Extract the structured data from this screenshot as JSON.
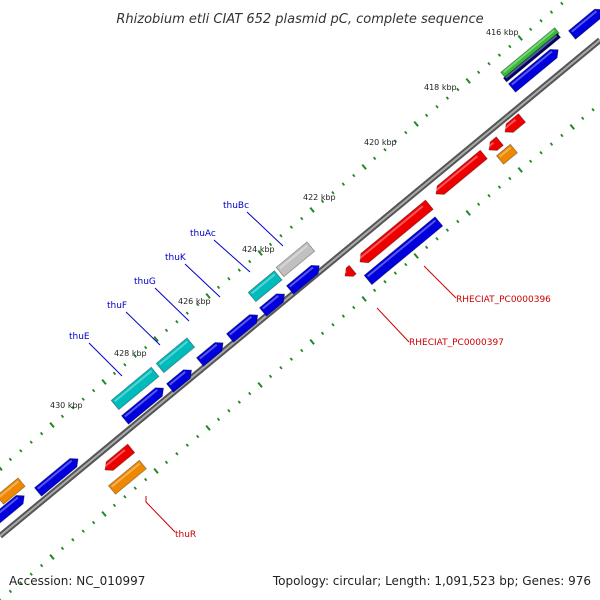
{
  "title": "Rhizobium etli CIAT 652 plasmid pC, complete sequence",
  "footer": {
    "accession": "Accession: NC_010997",
    "summary": "Topology: circular; Length: 1,091,523 bp; Genes: 976"
  },
  "ticks": [
    {
      "label": "416 kbp"
    },
    {
      "label": "418 kbp"
    },
    {
      "label": "420 kbp"
    },
    {
      "label": "422 kbp"
    },
    {
      "label": "424 kbp"
    },
    {
      "label": "426 kbp"
    },
    {
      "label": "428 kbp"
    },
    {
      "label": "430 kbp"
    }
  ],
  "gene_labels": [
    {
      "name": "thuBc",
      "color": "#0000cc"
    },
    {
      "name": "thuAc",
      "color": "#0000cc"
    },
    {
      "name": "thuK",
      "color": "#0000cc"
    },
    {
      "name": "thuG",
      "color": "#0000cc"
    },
    {
      "name": "thuF",
      "color": "#0000cc"
    },
    {
      "name": "thuE",
      "color": "#0000cc"
    },
    {
      "name": "RHECIAT_PC0000396",
      "color": "#cc0000"
    },
    {
      "name": "RHECIAT_PC0000397",
      "color": "#cc0000"
    },
    {
      "name": "thuR",
      "color": "#cc0000"
    }
  ],
  "colors": {
    "backbone": "#808080",
    "blue_cds": "#0000dd",
    "red_cds": "#ee0000",
    "cyan_cds": "#00bbbb",
    "grey_cds": "#c0c0c0",
    "orange_cds": "#ee8800",
    "green_cds": "#33bb33",
    "tick_dots": "#228822"
  }
}
